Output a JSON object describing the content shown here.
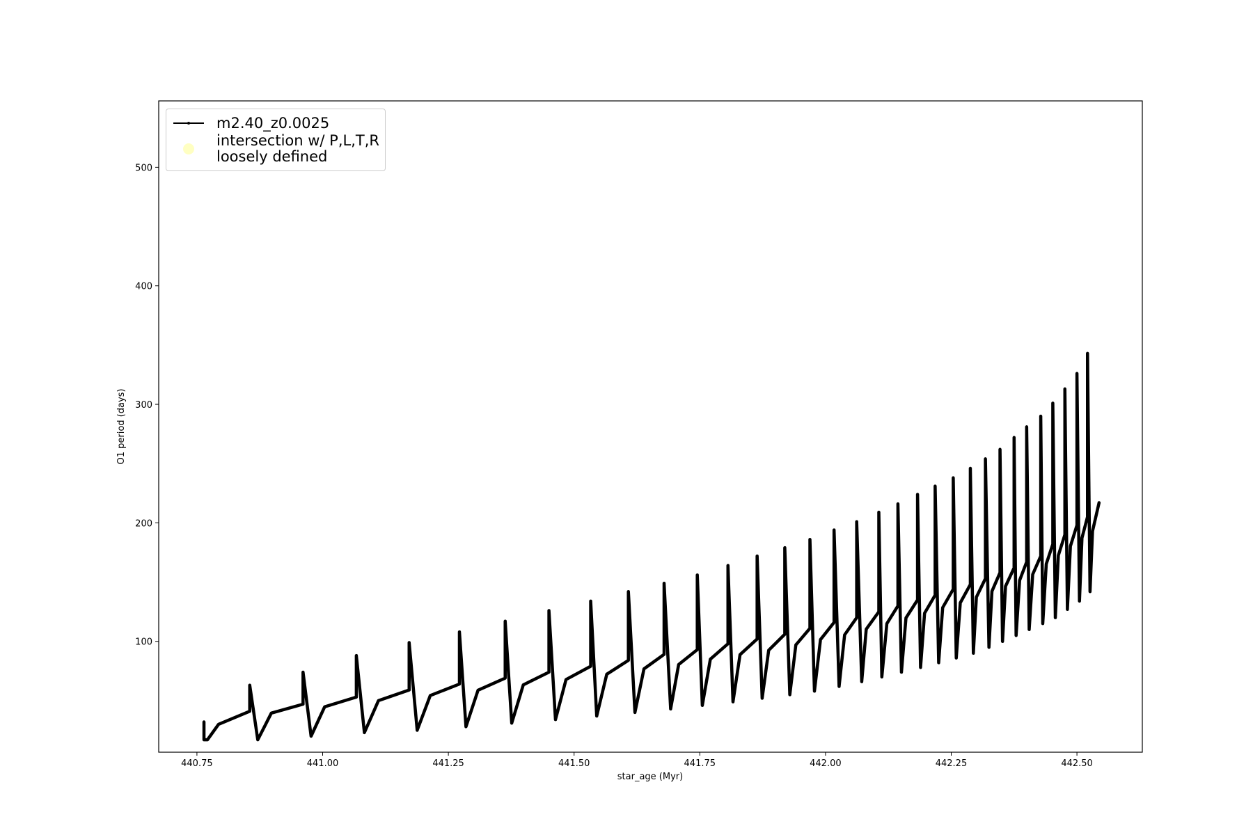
{
  "chart_data": {
    "type": "line",
    "xlabel": "star_age (Myr)",
    "ylabel": "O1 period (days)",
    "xlim": [
      440.674,
      442.63
    ],
    "ylim": [
      6.5,
      556
    ],
    "xticks": [
      440.75,
      {
        "value": 441.0,
        "label": "441.00"
      },
      441.25,
      {
        "value": 441.5,
        "label": "441.50"
      },
      441.75,
      {
        "value": 442.0,
        "label": "442.00"
      },
      442.25,
      {
        "value": 442.5,
        "label": "442.50"
      }
    ],
    "yticks": [
      100,
      200,
      300,
      400,
      500
    ],
    "grid": false,
    "legend": "upper left",
    "series": [
      {
        "name": "m2.40_z0.0025",
        "color": "#000000",
        "type": "line",
        "x": [
          440.764,
          440.764,
          440.771,
          440.793,
          440.855,
          440.855,
          440.871,
          440.898,
          440.961,
          440.961,
          440.977,
          441.004,
          441.067,
          441.067,
          441.083,
          441.111,
          441.172,
          441.172,
          441.188,
          441.214,
          441.272,
          441.272,
          441.285,
          441.309,
          441.363,
          441.363,
          441.376,
          441.399,
          441.45,
          441.45,
          441.463,
          441.484,
          441.533,
          441.533,
          441.545,
          441.565,
          441.608,
          441.608,
          441.621,
          441.639,
          441.679,
          441.679,
          441.692,
          441.708,
          441.745,
          441.745,
          441.755,
          441.771,
          441.806,
          441.806,
          441.816,
          441.83,
          441.864,
          441.864,
          441.874,
          441.887,
          441.919,
          441.919,
          441.929,
          441.941,
          441.969,
          441.969,
          441.978,
          441.99,
          442.017,
          442.017,
          442.027,
          442.038,
          442.062,
          442.062,
          442.072,
          442.081,
          442.106,
          442.106,
          442.112,
          442.122,
          442.144,
          442.144,
          442.151,
          442.16,
          442.183,
          442.183,
          442.189,
          442.197,
          442.218,
          442.218,
          442.225,
          442.233,
          442.254,
          442.254,
          442.26,
          442.268,
          442.288,
          442.288,
          442.294,
          442.3,
          442.318,
          442.318,
          442.325,
          442.331,
          442.347,
          442.347,
          442.352,
          442.358,
          442.375,
          442.375,
          442.379,
          442.386,
          442.4,
          442.4,
          442.405,
          442.412,
          442.428,
          442.428,
          442.432,
          442.439,
          442.452,
          442.452,
          442.457,
          442.463,
          442.476,
          442.476,
          442.481,
          442.487,
          442.5,
          442.5,
          442.505,
          442.51,
          442.521,
          442.521,
          442.526,
          442.531,
          442.544
        ],
        "values": [
          32,
          17,
          17,
          30,
          41,
          63,
          17,
          39.5,
          47,
          74,
          20,
          44.8,
          53,
          88,
          23,
          50,
          59,
          99,
          25,
          54.3,
          64,
          108,
          28,
          58.8,
          69,
          117,
          31,
          63.3,
          74,
          126,
          34,
          67.8,
          79,
          134,
          37,
          72.3,
          84,
          142,
          40,
          76.8,
          89,
          149,
          43,
          80.5,
          93,
          156,
          46,
          85,
          98,
          164,
          49,
          88.8,
          102,
          172,
          52,
          92.5,
          106,
          179,
          55,
          97,
          111,
          186,
          58,
          101.5,
          116,
          194,
          62,
          105.5,
          120,
          201,
          66,
          110.3,
          125,
          209,
          70,
          115,
          130,
          216,
          74,
          119.8,
          135,
          224,
          78,
          123.8,
          139,
          231,
          82,
          128.5,
          144,
          238,
          86,
          132.5,
          148,
          246,
          90,
          137.3,
          153,
          254,
          95,
          142.3,
          158,
          262,
          100,
          146.5,
          162,
          272,
          105,
          151.5,
          167,
          281,
          110,
          156.5,
          172,
          290,
          115,
          165.3,
          182,
          301,
          120,
          172.5,
          190,
          313,
          127,
          180.3,
          198,
          326,
          134,
          187.3,
          205,
          343,
          142,
          193,
          217
        ]
      },
      {
        "name": "intersection w/ P,L,T,R\nloosely defined",
        "color": "#ffffb3",
        "type": "scatter",
        "x": [],
        "values": []
      }
    ]
  }
}
